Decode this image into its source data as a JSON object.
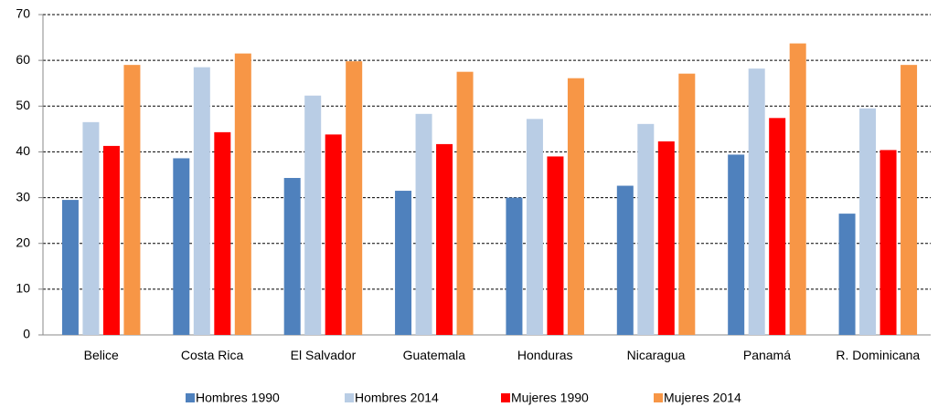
{
  "chart_data": {
    "type": "bar",
    "categories": [
      "Belice",
      "Costa Rica",
      "El Salvador",
      "Guatemala",
      "Honduras",
      "Nicaragua",
      "Panamá",
      "R. Dominicana"
    ],
    "series": [
      {
        "name": "Hombres 1990",
        "color": "#4f81bd",
        "values": [
          29.5,
          38.6,
          34.3,
          31.5,
          30,
          32.6,
          39.4,
          26.5
        ]
      },
      {
        "name": "Hombres 2014",
        "color": "#b9cde5",
        "values": [
          46.5,
          58.5,
          52.3,
          48.3,
          47.2,
          46.1,
          58.2,
          49.5
        ]
      },
      {
        "name": "Mujeres 1990",
        "color": "#ff0000",
        "values": [
          41.3,
          44.3,
          43.8,
          41.7,
          39,
          42.3,
          47.4,
          40.4
        ]
      },
      {
        "name": "Mujeres 2014",
        "color": "#f79646",
        "values": [
          59,
          61.5,
          59.8,
          57.5,
          56.1,
          57.1,
          63.7,
          59
        ]
      }
    ],
    "ylim": [
      0,
      70
    ],
    "yticks": [
      0,
      10,
      20,
      30,
      40,
      50,
      60,
      70
    ],
    "grid": true,
    "legend": "bottom"
  }
}
